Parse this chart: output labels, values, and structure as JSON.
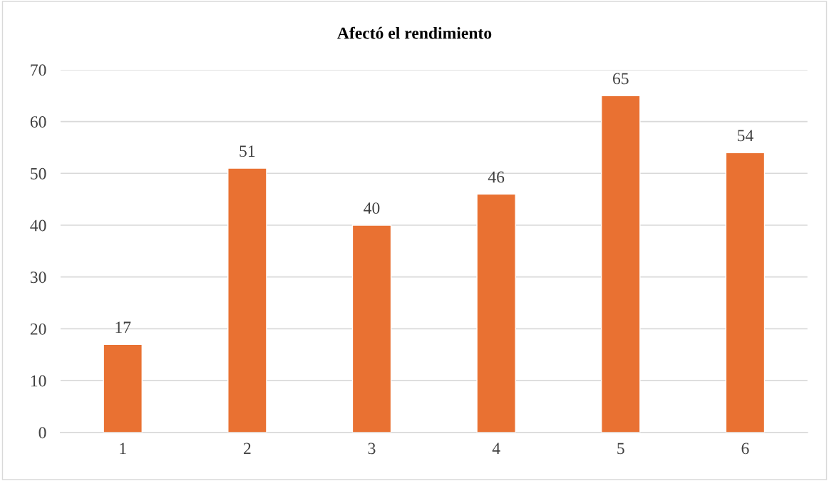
{
  "chart_data": {
    "type": "bar",
    "title": "Afectó el rendimiento",
    "categories": [
      "1",
      "2",
      "3",
      "4",
      "5",
      "6"
    ],
    "values": [
      17,
      51,
      40,
      46,
      65,
      54
    ],
    "color": "#e97132",
    "ylim": [
      0,
      70
    ],
    "yticks": [
      0,
      10,
      20,
      30,
      40,
      50,
      60,
      70
    ],
    "grid": "y",
    "data_labels": true
  }
}
